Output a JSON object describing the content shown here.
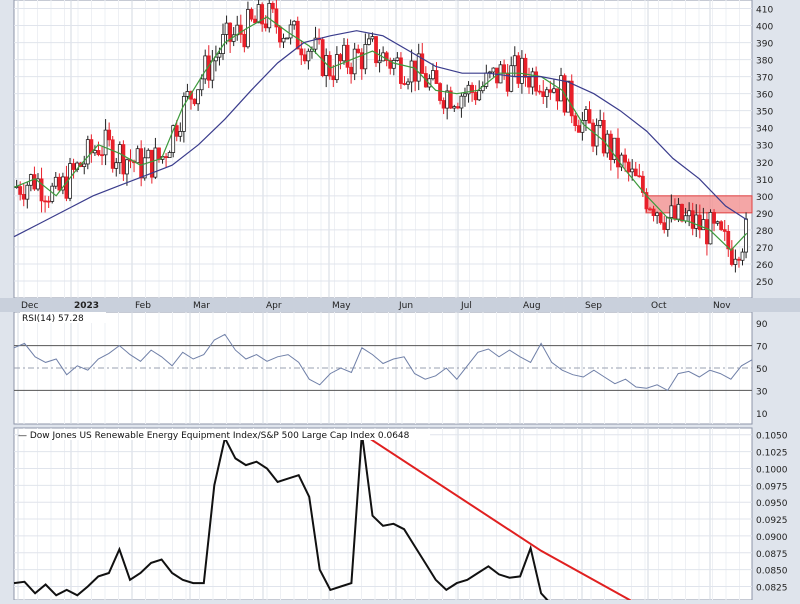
{
  "chart_data": [
    {
      "type": "candlestick",
      "title": "",
      "x_labels": [
        "Dec",
        "2023",
        "Feb",
        "Mar",
        "Apr",
        "May",
        "Jun",
        "Jul",
        "Aug",
        "Sep",
        "Oct",
        "Nov"
      ],
      "yticks": [
        250,
        260,
        270,
        280,
        290,
        300,
        310,
        320,
        330,
        340,
        350,
        360,
        370,
        380,
        390,
        400,
        410
      ],
      "ylim": [
        240,
        415
      ],
      "grid": true,
      "up_color": "#222222",
      "down_color": "#e8202a",
      "series": [
        {
          "name": "",
          "type": "moving-average",
          "color": "#3c9a3c",
          "values": [
            [
              0,
              305
            ],
            [
              8,
              310
            ],
            [
              16,
              300
            ],
            [
              24,
              316
            ],
            [
              32,
              330
            ],
            [
              40,
              325
            ],
            [
              48,
              318
            ],
            [
              56,
              322
            ],
            [
              64,
              352
            ],
            [
              72,
              372
            ],
            [
              80,
              390
            ],
            [
              88,
              398
            ],
            [
              96,
              405
            ],
            [
              104,
              396
            ],
            [
              112,
              388
            ],
            [
              120,
              375
            ],
            [
              128,
              380
            ],
            [
              136,
              385
            ],
            [
              144,
              378
            ],
            [
              152,
              375
            ],
            [
              160,
              362
            ],
            [
              168,
              360
            ],
            [
              176,
              362
            ],
            [
              184,
              372
            ],
            [
              192,
              372
            ],
            [
              200,
              370
            ],
            [
              208,
              362
            ],
            [
              216,
              342
            ],
            [
              224,
              332
            ],
            [
              232,
              315
            ],
            [
              240,
              300
            ],
            [
              248,
              287
            ],
            [
              256,
              285
            ],
            [
              264,
              280
            ],
            [
              272,
              268
            ],
            [
              278,
              278
            ]
          ]
        },
        {
          "name": "",
          "type": "moving-average",
          "color": "#3a3c8c",
          "values": [
            [
              0,
              276
            ],
            [
              10,
              284
            ],
            [
              20,
              292
            ],
            [
              30,
              300
            ],
            [
              40,
              306
            ],
            [
              50,
              312
            ],
            [
              60,
              318
            ],
            [
              70,
              330
            ],
            [
              80,
              345
            ],
            [
              90,
              362
            ],
            [
              100,
              378
            ],
            [
              110,
              390
            ],
            [
              120,
              394
            ],
            [
              130,
              397
            ],
            [
              140,
              394
            ],
            [
              150,
              385
            ],
            [
              160,
              376
            ],
            [
              170,
              372
            ],
            [
              180,
              372
            ],
            [
              190,
              370
            ],
            [
              200,
              370
            ],
            [
              210,
              367
            ],
            [
              220,
              360
            ],
            [
              230,
              350
            ],
            [
              240,
              338
            ],
            [
              250,
              322
            ],
            [
              260,
              310
            ],
            [
              270,
              294
            ],
            [
              278,
              286
            ]
          ]
        }
      ],
      "resistance_zone": {
        "from": 290,
        "to": 300,
        "color": "#f08080"
      }
    },
    {
      "type": "line",
      "title": "RSI(14) 57.28",
      "yticks": [
        10,
        30,
        50,
        70,
        90
      ],
      "ylim": [
        0,
        100
      ],
      "reference_lines": [
        30,
        50,
        70
      ],
      "series": [
        {
          "name": "RSI(14)",
          "color": "#7080a8",
          "values": [
            [
              0,
              68
            ],
            [
              4,
              72
            ],
            [
              8,
              60
            ],
            [
              12,
              55
            ],
            [
              16,
              58
            ],
            [
              20,
              44
            ],
            [
              24,
              52
            ],
            [
              28,
              48
            ],
            [
              32,
              58
            ],
            [
              36,
              63
            ],
            [
              40,
              70
            ],
            [
              44,
              62
            ],
            [
              48,
              56
            ],
            [
              52,
              66
            ],
            [
              56,
              60
            ],
            [
              60,
              52
            ],
            [
              64,
              64
            ],
            [
              68,
              58
            ],
            [
              72,
              62
            ],
            [
              76,
              75
            ],
            [
              80,
              80
            ],
            [
              84,
              66
            ],
            [
              88,
              58
            ],
            [
              92,
              62
            ],
            [
              96,
              56
            ],
            [
              100,
              60
            ],
            [
              104,
              62
            ],
            [
              108,
              55
            ],
            [
              112,
              40
            ],
            [
              116,
              35
            ],
            [
              120,
              45
            ],
            [
              124,
              50
            ],
            [
              128,
              46
            ],
            [
              132,
              68
            ],
            [
              136,
              62
            ],
            [
              140,
              54
            ],
            [
              144,
              58
            ],
            [
              148,
              60
            ],
            [
              152,
              45
            ],
            [
              156,
              40
            ],
            [
              160,
              43
            ],
            [
              164,
              50
            ],
            [
              168,
              40
            ],
            [
              172,
              52
            ],
            [
              176,
              64
            ],
            [
              180,
              67
            ],
            [
              184,
              60
            ],
            [
              188,
              66
            ],
            [
              192,
              60
            ],
            [
              196,
              55
            ],
            [
              200,
              72
            ],
            [
              204,
              55
            ],
            [
              208,
              48
            ],
            [
              212,
              44
            ],
            [
              216,
              42
            ],
            [
              220,
              48
            ],
            [
              224,
              42
            ],
            [
              228,
              36
            ],
            [
              232,
              40
            ],
            [
              236,
              33
            ],
            [
              240,
              32
            ],
            [
              244,
              35
            ],
            [
              248,
              30
            ],
            [
              252,
              45
            ],
            [
              256,
              47
            ],
            [
              260,
              42
            ],
            [
              264,
              48
            ],
            [
              268,
              45
            ],
            [
              272,
              40
            ],
            [
              276,
              52
            ],
            [
              280,
              57.28
            ]
          ]
        }
      ]
    },
    {
      "type": "line",
      "title": "Dow Jones US Renewable Energy Equipment Index/S&P 500 Large Cap Index 0.0648",
      "yticks": [
        0.0825,
        0.085,
        0.0875,
        0.09,
        0.0925,
        0.095,
        0.0975,
        0.1,
        0.1025,
        0.105
      ],
      "ylim": [
        0.0805,
        0.106
      ],
      "series": [
        {
          "name": "Dow Jones US Renewable Energy Equipment Index/S&P 500 Large Cap Index",
          "color": "#111111",
          "values": [
            [
              0,
              0.083
            ],
            [
              4,
              0.0832
            ],
            [
              8,
              0.0815
            ],
            [
              12,
              0.0828
            ],
            [
              16,
              0.0812
            ],
            [
              20,
              0.082
            ],
            [
              24,
              0.0812
            ],
            [
              28,
              0.0825
            ],
            [
              32,
              0.084
            ],
            [
              36,
              0.0845
            ],
            [
              40,
              0.088
            ],
            [
              44,
              0.0835
            ],
            [
              48,
              0.0845
            ],
            [
              52,
              0.086
            ],
            [
              56,
              0.0865
            ],
            [
              60,
              0.0845
            ],
            [
              64,
              0.0835
            ],
            [
              68,
              0.083
            ],
            [
              72,
              0.083
            ],
            [
              76,
              0.0975
            ],
            [
              80,
              0.1045
            ],
            [
              84,
              0.1015
            ],
            [
              88,
              0.1005
            ],
            [
              92,
              0.101
            ],
            [
              96,
              0.1
            ],
            [
              100,
              0.098
            ],
            [
              104,
              0.0985
            ],
            [
              108,
              0.099
            ],
            [
              112,
              0.0958
            ],
            [
              116,
              0.085
            ],
            [
              120,
              0.082
            ],
            [
              124,
              0.0825
            ],
            [
              128,
              0.083
            ],
            [
              132,
              0.1052
            ],
            [
              136,
              0.093
            ],
            [
              140,
              0.0915
            ],
            [
              144,
              0.0918
            ],
            [
              148,
              0.091
            ],
            [
              152,
              0.0885
            ],
            [
              156,
              0.086
            ],
            [
              160,
              0.0835
            ],
            [
              164,
              0.082
            ],
            [
              168,
              0.083
            ],
            [
              172,
              0.0835
            ],
            [
              176,
              0.0845
            ],
            [
              180,
              0.0855
            ],
            [
              184,
              0.0843
            ],
            [
              188,
              0.0838
            ],
            [
              192,
              0.084
            ],
            [
              196,
              0.0882
            ],
            [
              200,
              0.0815
            ],
            [
              204,
              0.0798
            ]
          ]
        },
        {
          "name": "",
          "type": "trendline",
          "color": "#e02020",
          "values": [
            [
              132,
              0.1052
            ],
            [
              200,
              0.0878
            ],
            [
              235,
              0.0802
            ]
          ]
        }
      ]
    }
  ]
}
